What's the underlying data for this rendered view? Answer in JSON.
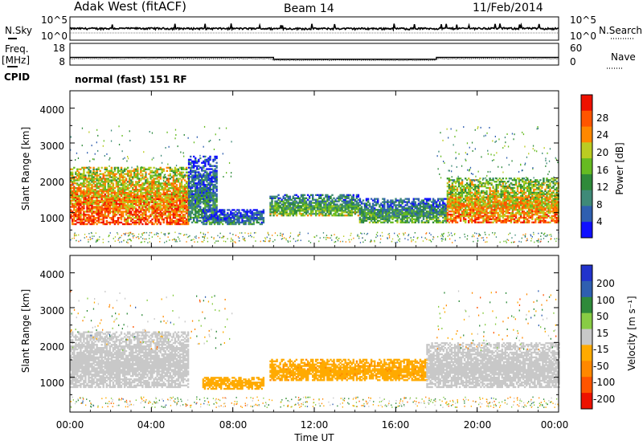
{
  "header": {
    "station": "Adak West (fitACF)",
    "beam": "Beam 14",
    "date": "11/Feb/2014"
  },
  "noise_panel": {
    "left_label": "N.Sky",
    "right_label": "N.Search",
    "y_top_left": "10^5",
    "y_bot_left": "10^0",
    "y_top_right": "10^5",
    "y_bot_right": "10^0"
  },
  "freq_panel": {
    "left_label_1": "Freq.",
    "left_label_2": "[MHz]",
    "left_label_3": "CPID",
    "right_label": "Nave",
    "y_top_left": "18",
    "y_bot_left": "8",
    "y_top_right": "60",
    "y_bot_right": "0",
    "cpid_text": "normal (fast) 151 RF"
  },
  "power_panel": {
    "ylabel": "Slant Range [km]",
    "yticks": [
      "1000",
      "2000",
      "3000",
      "4000"
    ],
    "colorbar_label": "Power [dB]",
    "colorbar_ticks": [
      "4",
      "8",
      "12",
      "16",
      "20",
      "24",
      "28"
    ]
  },
  "velocity_panel": {
    "ylabel": "Slant Range [km]",
    "yticks": [
      "1000",
      "2000",
      "3000",
      "4000"
    ],
    "colorbar_label": "Velocity [m s⁻¹]",
    "colorbar_ticks": [
      "200",
      "100",
      "50",
      "15",
      "-15",
      "-50",
      "-100",
      "-200"
    ]
  },
  "xaxis": {
    "xlabel": "Time UT",
    "xticks": [
      "00:00",
      "04:00",
      "08:00",
      "12:00",
      "16:00",
      "20:00",
      "00:00"
    ]
  },
  "chart_data": [
    {
      "type": "line",
      "panel": "noise",
      "x_range_hours": [
        0,
        24
      ],
      "yscale": "log",
      "ylim": [
        1,
        100000
      ],
      "series": [
        {
          "x": [
            0,
            3,
            6,
            9,
            12,
            15,
            18,
            21,
            24
          ],
          "y": [
            300,
            320,
            310,
            300,
            290,
            300,
            310,
            340,
            300
          ]
        }
      ]
    },
    {
      "type": "line",
      "panel": "frequency",
      "x_range_hours": [
        0,
        24
      ],
      "ylim": [
        8,
        18
      ],
      "series": [
        {
          "x": [
            0,
            10,
            10,
            18,
            18,
            24
          ],
          "y": [
            11.5,
            11.5,
            10.7,
            10.7,
            11.5,
            11.5
          ]
        }
      ]
    },
    {
      "type": "heatmap",
      "panel": "power",
      "x_range_hours": [
        0,
        24
      ],
      "ylim": [
        0,
        4500
      ],
      "colorbar": {
        "variable": "Power",
        "units": "dB",
        "range": [
          0,
          30
        ],
        "colors": [
          "#1010ff",
          "#2f5fb0",
          "#3f8a78",
          "#2f8a3a",
          "#66bb22",
          "#bbcc22",
          "#ff8800",
          "#ff5500",
          "#ee1100"
        ]
      },
      "regions": [
        {
          "t": [
            0,
            5.8
          ],
          "range_km": [
            650,
            2300
          ],
          "power_db": 26
        },
        {
          "t": [
            5.8,
            7.2
          ],
          "range_km": [
            700,
            2600
          ],
          "power_db": 12
        },
        {
          "t": [
            6.5,
            9.5
          ],
          "range_km": [
            650,
            1100
          ],
          "power_db": 10
        },
        {
          "t": [
            9.8,
            14.2
          ],
          "range_km": [
            900,
            1500
          ],
          "power_db": 16
        },
        {
          "t": [
            14.2,
            18.5
          ],
          "range_km": [
            700,
            1400
          ],
          "power_db": 14
        },
        {
          "t": [
            18.5,
            24
          ],
          "range_km": [
            700,
            2000
          ],
          "power_db": 24
        }
      ]
    },
    {
      "type": "heatmap",
      "panel": "velocity",
      "x_range_hours": [
        0,
        24
      ],
      "ylim": [
        0,
        4500
      ],
      "colorbar": {
        "variable": "Velocity",
        "units": "m s-1",
        "range": [
          -250,
          250
        ],
        "colors": [
          "#ee1100",
          "#ff5500",
          "#ff8800",
          "#ffaa00",
          "#c8c8c8",
          "#88cc44",
          "#2f8a3a",
          "#2f5fb0",
          "#2233cc"
        ]
      },
      "regions": [
        {
          "t": [
            0,
            5.8
          ],
          "range_km": [
            700,
            2300
          ],
          "velocity_ms": 0
        },
        {
          "t": [
            6.5,
            9.5
          ],
          "range_km": [
            650,
            1000
          ],
          "velocity_ms": -60
        },
        {
          "t": [
            9.8,
            17.5
          ],
          "range_km": [
            900,
            1500
          ],
          "velocity_ms": -70
        },
        {
          "t": [
            17.5,
            24
          ],
          "range_km": [
            700,
            2000
          ],
          "velocity_ms": 0
        }
      ]
    }
  ]
}
